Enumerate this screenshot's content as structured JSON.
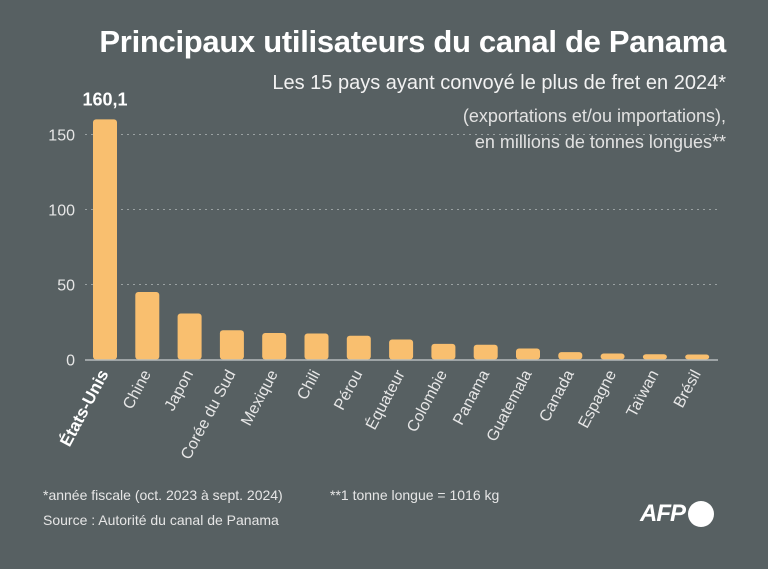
{
  "header": {
    "title": "Principaux utilisateurs du canal de Panama",
    "subtitle": "Les 15 pays ayant convoyé le plus de fret en 2024*",
    "subtitle2": "(exportations et/ou importations),",
    "subtitle3": "en millions de tonnes longues**"
  },
  "footer": {
    "note1": "*année fiscale (oct. 2023 à sept. 2024)",
    "note2": "**1 tonne longue = 1016 kg",
    "source": "Source : Autorité du canal de Panama",
    "logo": "AFP"
  },
  "colors": {
    "background": "#576062",
    "bar": "#f9bf6f",
    "grid": "#9aa1a2"
  },
  "chart_data": {
    "type": "bar",
    "categories": [
      "États-Unis",
      "Chine",
      "Japon",
      "Corée du Sud",
      "Mexique",
      "Chili",
      "Pérou",
      "Équateur",
      "Colombie",
      "Panama",
      "Guatemala",
      "Canada",
      "Espagne",
      "Taïwan",
      "Brésil"
    ],
    "values": [
      160.1,
      45,
      30.7,
      19.5,
      17.7,
      17.3,
      15.8,
      13.3,
      10.4,
      9.8,
      7.3,
      4.9,
      4.0,
      3.5,
      3.3
    ],
    "data_labels": {
      "0": "160,1"
    },
    "yticks": [
      0,
      50,
      100,
      150
    ],
    "ylim": [
      0,
      160.1
    ],
    "grid": true,
    "xlabel": "",
    "ylabel": ""
  }
}
